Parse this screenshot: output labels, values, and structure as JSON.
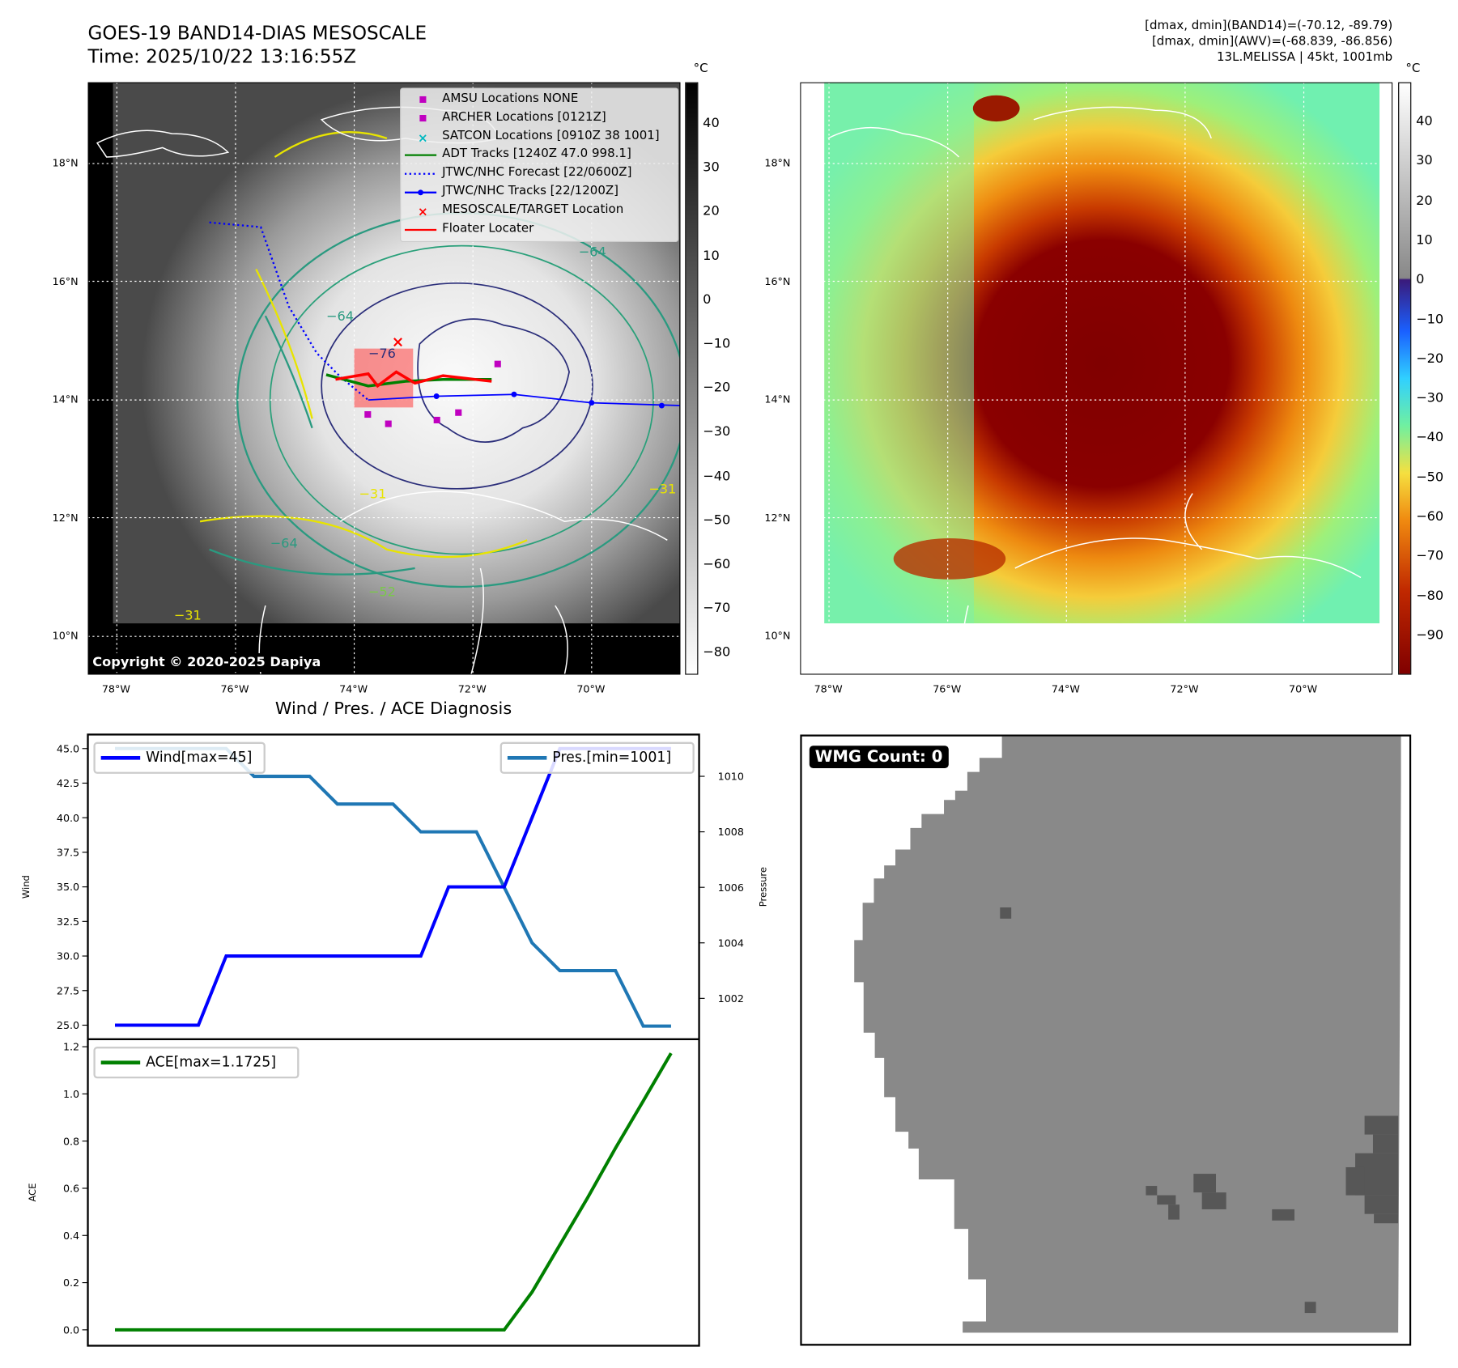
{
  "header": {
    "title_line1": "GOES-19 BAND14-DIAS MESOSCALE",
    "title_line2": "Time: 2025/10/22 13:16:55Z",
    "info_line1": "[dmax, dmin](BAND14)=(-70.12, -89.79)",
    "info_line2": "[dmax, dmin](AWV)=(-68.839, -86.856)",
    "info_line3": "13L.MELISSA | 45kt, 1001mb"
  },
  "maps": {
    "lat_labels": [
      "18°N",
      "16°N",
      "14°N",
      "12°N",
      "10°N"
    ],
    "lon_labels": [
      "78°W",
      "76°W",
      "74°W",
      "72°W",
      "70°W"
    ],
    "unit": "°C",
    "left_colorbar_ticks": [
      "40",
      "30",
      "20",
      "10",
      "0",
      "−10",
      "−20",
      "−30",
      "−40",
      "−50",
      "−60",
      "−70",
      "−80"
    ],
    "right_colorbar_ticks": [
      "40",
      "30",
      "20",
      "10",
      "0",
      "−10",
      "−20",
      "−30",
      "−40",
      "−50",
      "−60",
      "−70",
      "−80",
      "−90"
    ],
    "contour_labels": [
      "−64",
      "−31",
      "−76",
      "−64",
      "−31",
      "−64",
      "−52",
      "−31"
    ],
    "copyright": "Copyright © 2020-2025 Dapiya",
    "legend": [
      {
        "label": "AMSU Locations NONE",
        "color": "#c000c0",
        "symbol": "square"
      },
      {
        "label": "ARCHER Locations [0121Z]",
        "color": "#c000c0",
        "symbol": "square"
      },
      {
        "label": "SATCON Locations [0910Z 38 1001]",
        "color": "#00b8c0",
        "symbol": "x"
      },
      {
        "label": "ADT Tracks [1240Z 47.0 998.1]",
        "color": "#008000",
        "symbol": "line"
      },
      {
        "label": "JTWC/NHC Forecast [22/0600Z]",
        "color": "#0000ff",
        "symbol": "dotted"
      },
      {
        "label": "JTWC/NHC Tracks [22/1200Z]",
        "color": "#0000ff",
        "symbol": "line-dot"
      },
      {
        "label": "MESOSCALE/TARGET Location",
        "color": "#ff0000",
        "symbol": "x"
      },
      {
        "label": "Floater Locater",
        "color": "#ff0000",
        "symbol": "line"
      }
    ]
  },
  "wmg": {
    "label": "WMG Count: 0"
  },
  "chart_data": [
    {
      "type": "line",
      "title": "Wind / Pres. / ACE Diagnosis",
      "x": [
        0,
        1,
        2,
        3,
        4,
        5,
        6,
        7,
        8,
        9,
        10,
        11,
        12,
        13,
        14,
        15,
        16,
        17,
        18,
        19,
        20
      ],
      "ylabel": "Wind",
      "ylabel2": "Pressure",
      "ylim": [
        24.5,
        45.5
      ],
      "ylim2": [
        1000.97,
        1011.03
      ],
      "yticks": [
        "45.0",
        "42.5",
        "40.0",
        "37.5",
        "35.0",
        "32.5",
        "30.0",
        "27.5",
        "25.0"
      ],
      "yticks2": [
        "1010",
        "1008",
        "1006",
        "1004",
        "1002"
      ],
      "series": [
        {
          "name": "Wind[max=45]",
          "axis": "left",
          "color": "#0000ff",
          "values": [
            25,
            25,
            25,
            25,
            30,
            30,
            30,
            30,
            30,
            30,
            30,
            30,
            35,
            35,
            35,
            40,
            45,
            45,
            45,
            45,
            45
          ]
        },
        {
          "name": "Pres.[min=1001]",
          "axis": "right",
          "color": "#1f77b4",
          "values": [
            1011,
            1011,
            1011,
            1011,
            1011,
            1010,
            1010,
            1010,
            1009,
            1009,
            1009,
            1008,
            1008,
            1008,
            1006,
            1004,
            1003,
            1003,
            1003,
            1001,
            1001
          ]
        }
      ]
    },
    {
      "type": "line",
      "x": [
        0,
        1,
        2,
        3,
        4,
        5,
        6,
        7,
        8,
        9,
        10,
        11,
        12,
        13,
        14,
        15,
        16,
        17,
        18,
        19,
        20
      ],
      "ylabel": "ACE",
      "ylim": [
        -0.06,
        1.23
      ],
      "yticks": [
        "1.2",
        "1.0",
        "0.8",
        "0.6",
        "0.4",
        "0.2",
        "0.0"
      ],
      "series": [
        {
          "name": "ACE[max=1.1725]",
          "color": "#008000",
          "values": [
            0,
            0,
            0,
            0,
            0,
            0,
            0,
            0,
            0,
            0,
            0,
            0,
            0,
            0,
            0,
            0.16,
            0.36,
            0.56,
            0.77,
            0.97,
            1.1725
          ]
        }
      ]
    }
  ]
}
